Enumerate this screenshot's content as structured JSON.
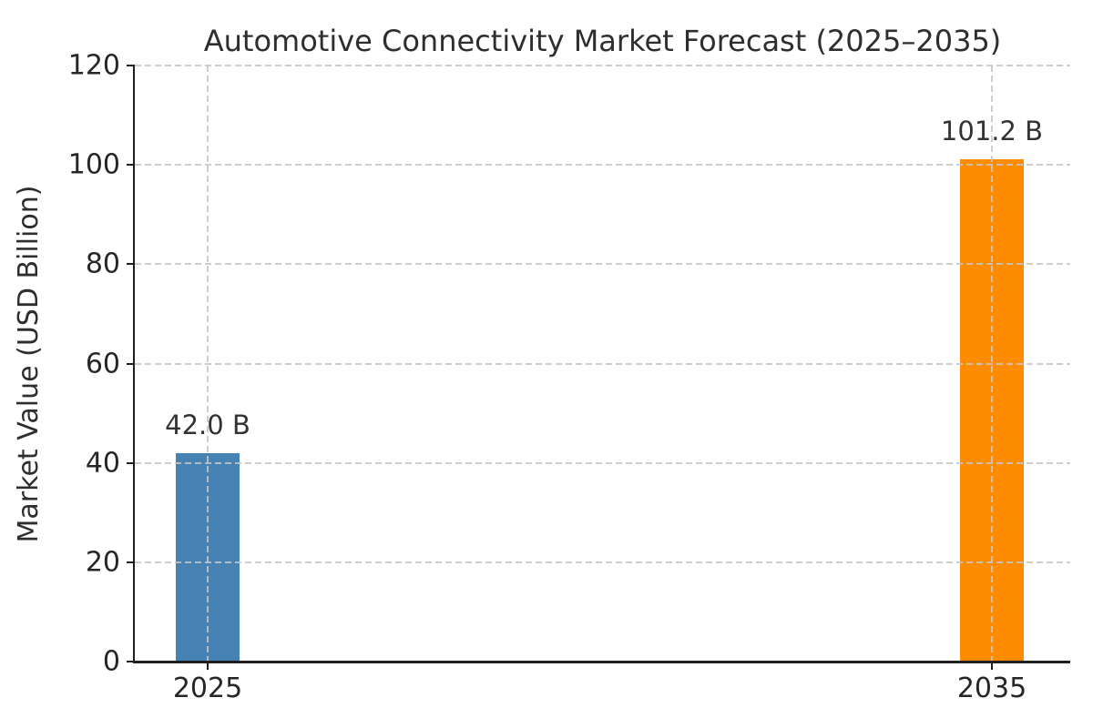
{
  "chart_data": {
    "type": "bar",
    "title": "Automotive Connectivity Market Forecast (2025–2035)",
    "ylabel": "Market Value (USD Billion)",
    "xlabel": "",
    "categories": [
      "2025",
      "2035"
    ],
    "values": [
      42.0,
      101.2
    ],
    "value_labels": [
      "42.0 B",
      "101.2 B"
    ],
    "bar_colors": [
      "#4682B4",
      "#FF8C00"
    ],
    "ylim": [
      0,
      120
    ],
    "yticks": [
      0,
      20,
      40,
      60,
      80,
      100,
      120
    ],
    "grid": {
      "style": "dashed",
      "color": "#c6c6c6",
      "horizontal_at_yticks": true,
      "vertical_at_bar_centers": true,
      "drawn_over_bars": true
    },
    "legend": "none",
    "colors": {
      "background": "#ffffff",
      "spine": "#1f1f1f",
      "title_text": "#2e2e2e",
      "tick_text": "#262626",
      "value_label_text": "#333333"
    }
  }
}
